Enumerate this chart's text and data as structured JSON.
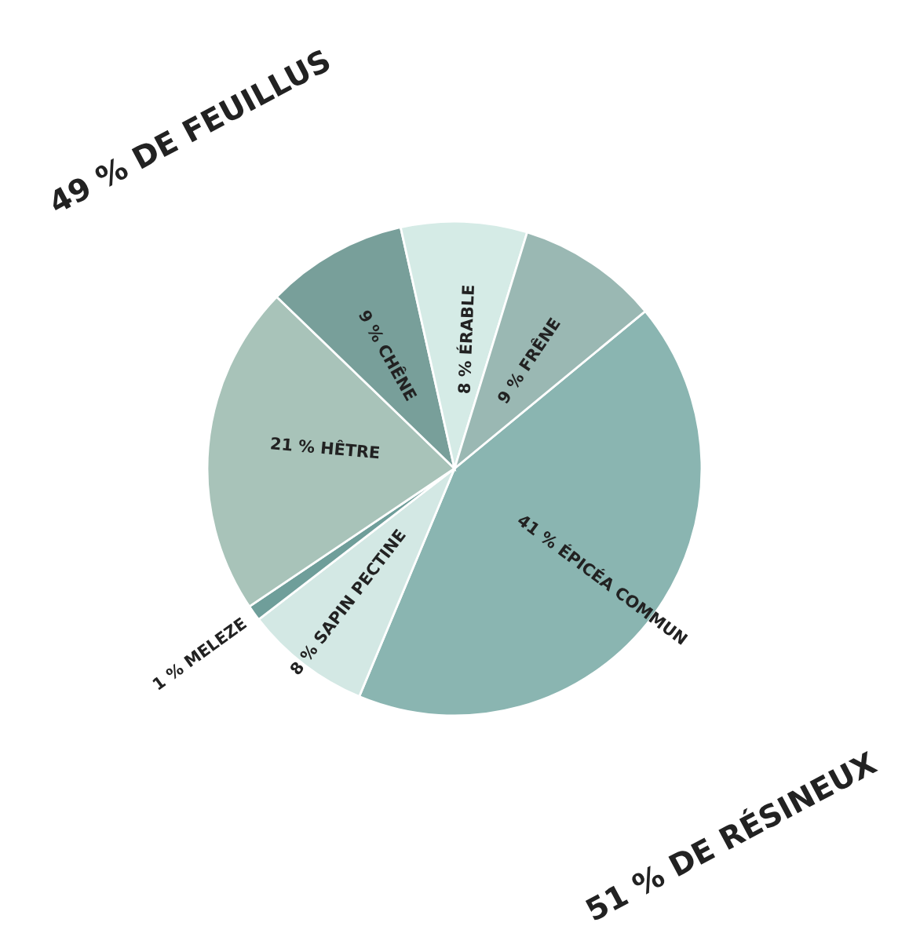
{
  "chart_data": {
    "type": "pie",
    "categories": [
      "ÉPICÉA COMMUN",
      "SAPIN PECTINE",
      "MELEZE",
      "HÊTRE",
      "CHÊNE",
      "ÉRABLE",
      "FRÊNE"
    ],
    "values": [
      41,
      8,
      1,
      21,
      9,
      8,
      9
    ],
    "value_labels": [
      "41 %",
      "8 %",
      "1 %",
      "21 %",
      "9 %",
      "8 %",
      "9 %"
    ],
    "colors": [
      "#8ab5b1",
      "#d3e8e4",
      "#6f9e9a",
      "#a8c3b9",
      "#789f9a",
      "#d5ebe6",
      "#9ab8b3"
    ],
    "annotations": [
      "49 % DE FEUILLUS",
      "51 % DE RÉSINEUX"
    ]
  }
}
